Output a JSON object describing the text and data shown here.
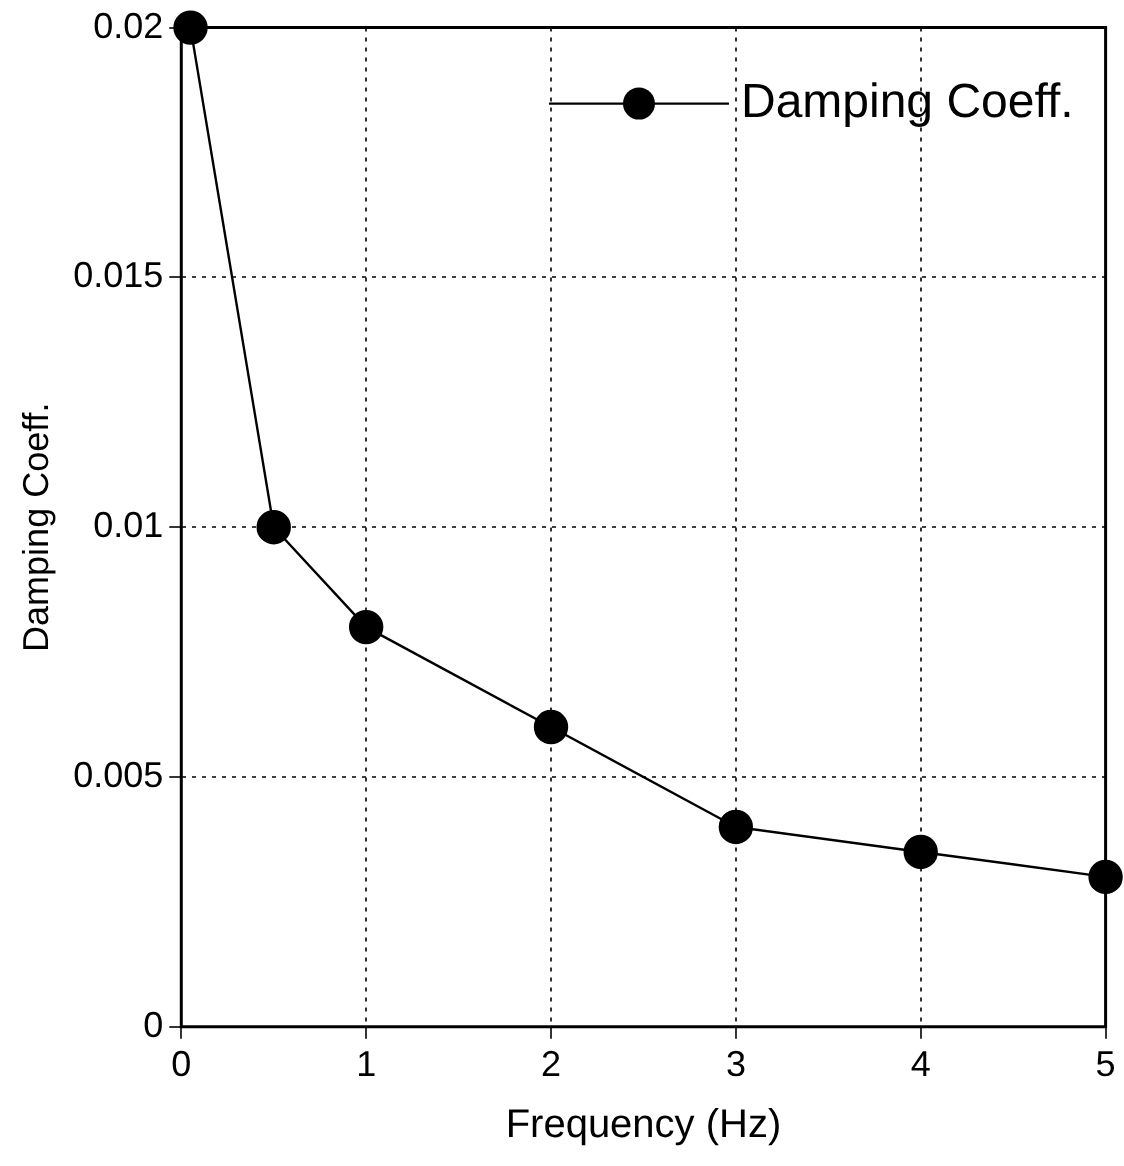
{
  "chart_data": {
    "type": "line",
    "xlabel": "Frequency (Hz)",
    "ylabel": "Damping Coeff.",
    "x": [
      0.05,
      0.5,
      1,
      2,
      3,
      4,
      5
    ],
    "series": [
      {
        "name": "Damping Coeff.",
        "color": "#000000",
        "values": [
          0.02,
          0.01,
          0.008,
          0.006,
          0.004,
          0.0035,
          0.003
        ]
      }
    ],
    "xlim": [
      0,
      5
    ],
    "xticks": [
      0,
      1,
      2,
      3,
      4,
      5
    ],
    "ylim": [
      0,
      0.02
    ],
    "yticks": [
      0,
      0.005,
      0.01,
      0.015,
      0.02
    ],
    "grid": true,
    "legend": "top right",
    "marker": "circle",
    "line_style": "solid"
  }
}
